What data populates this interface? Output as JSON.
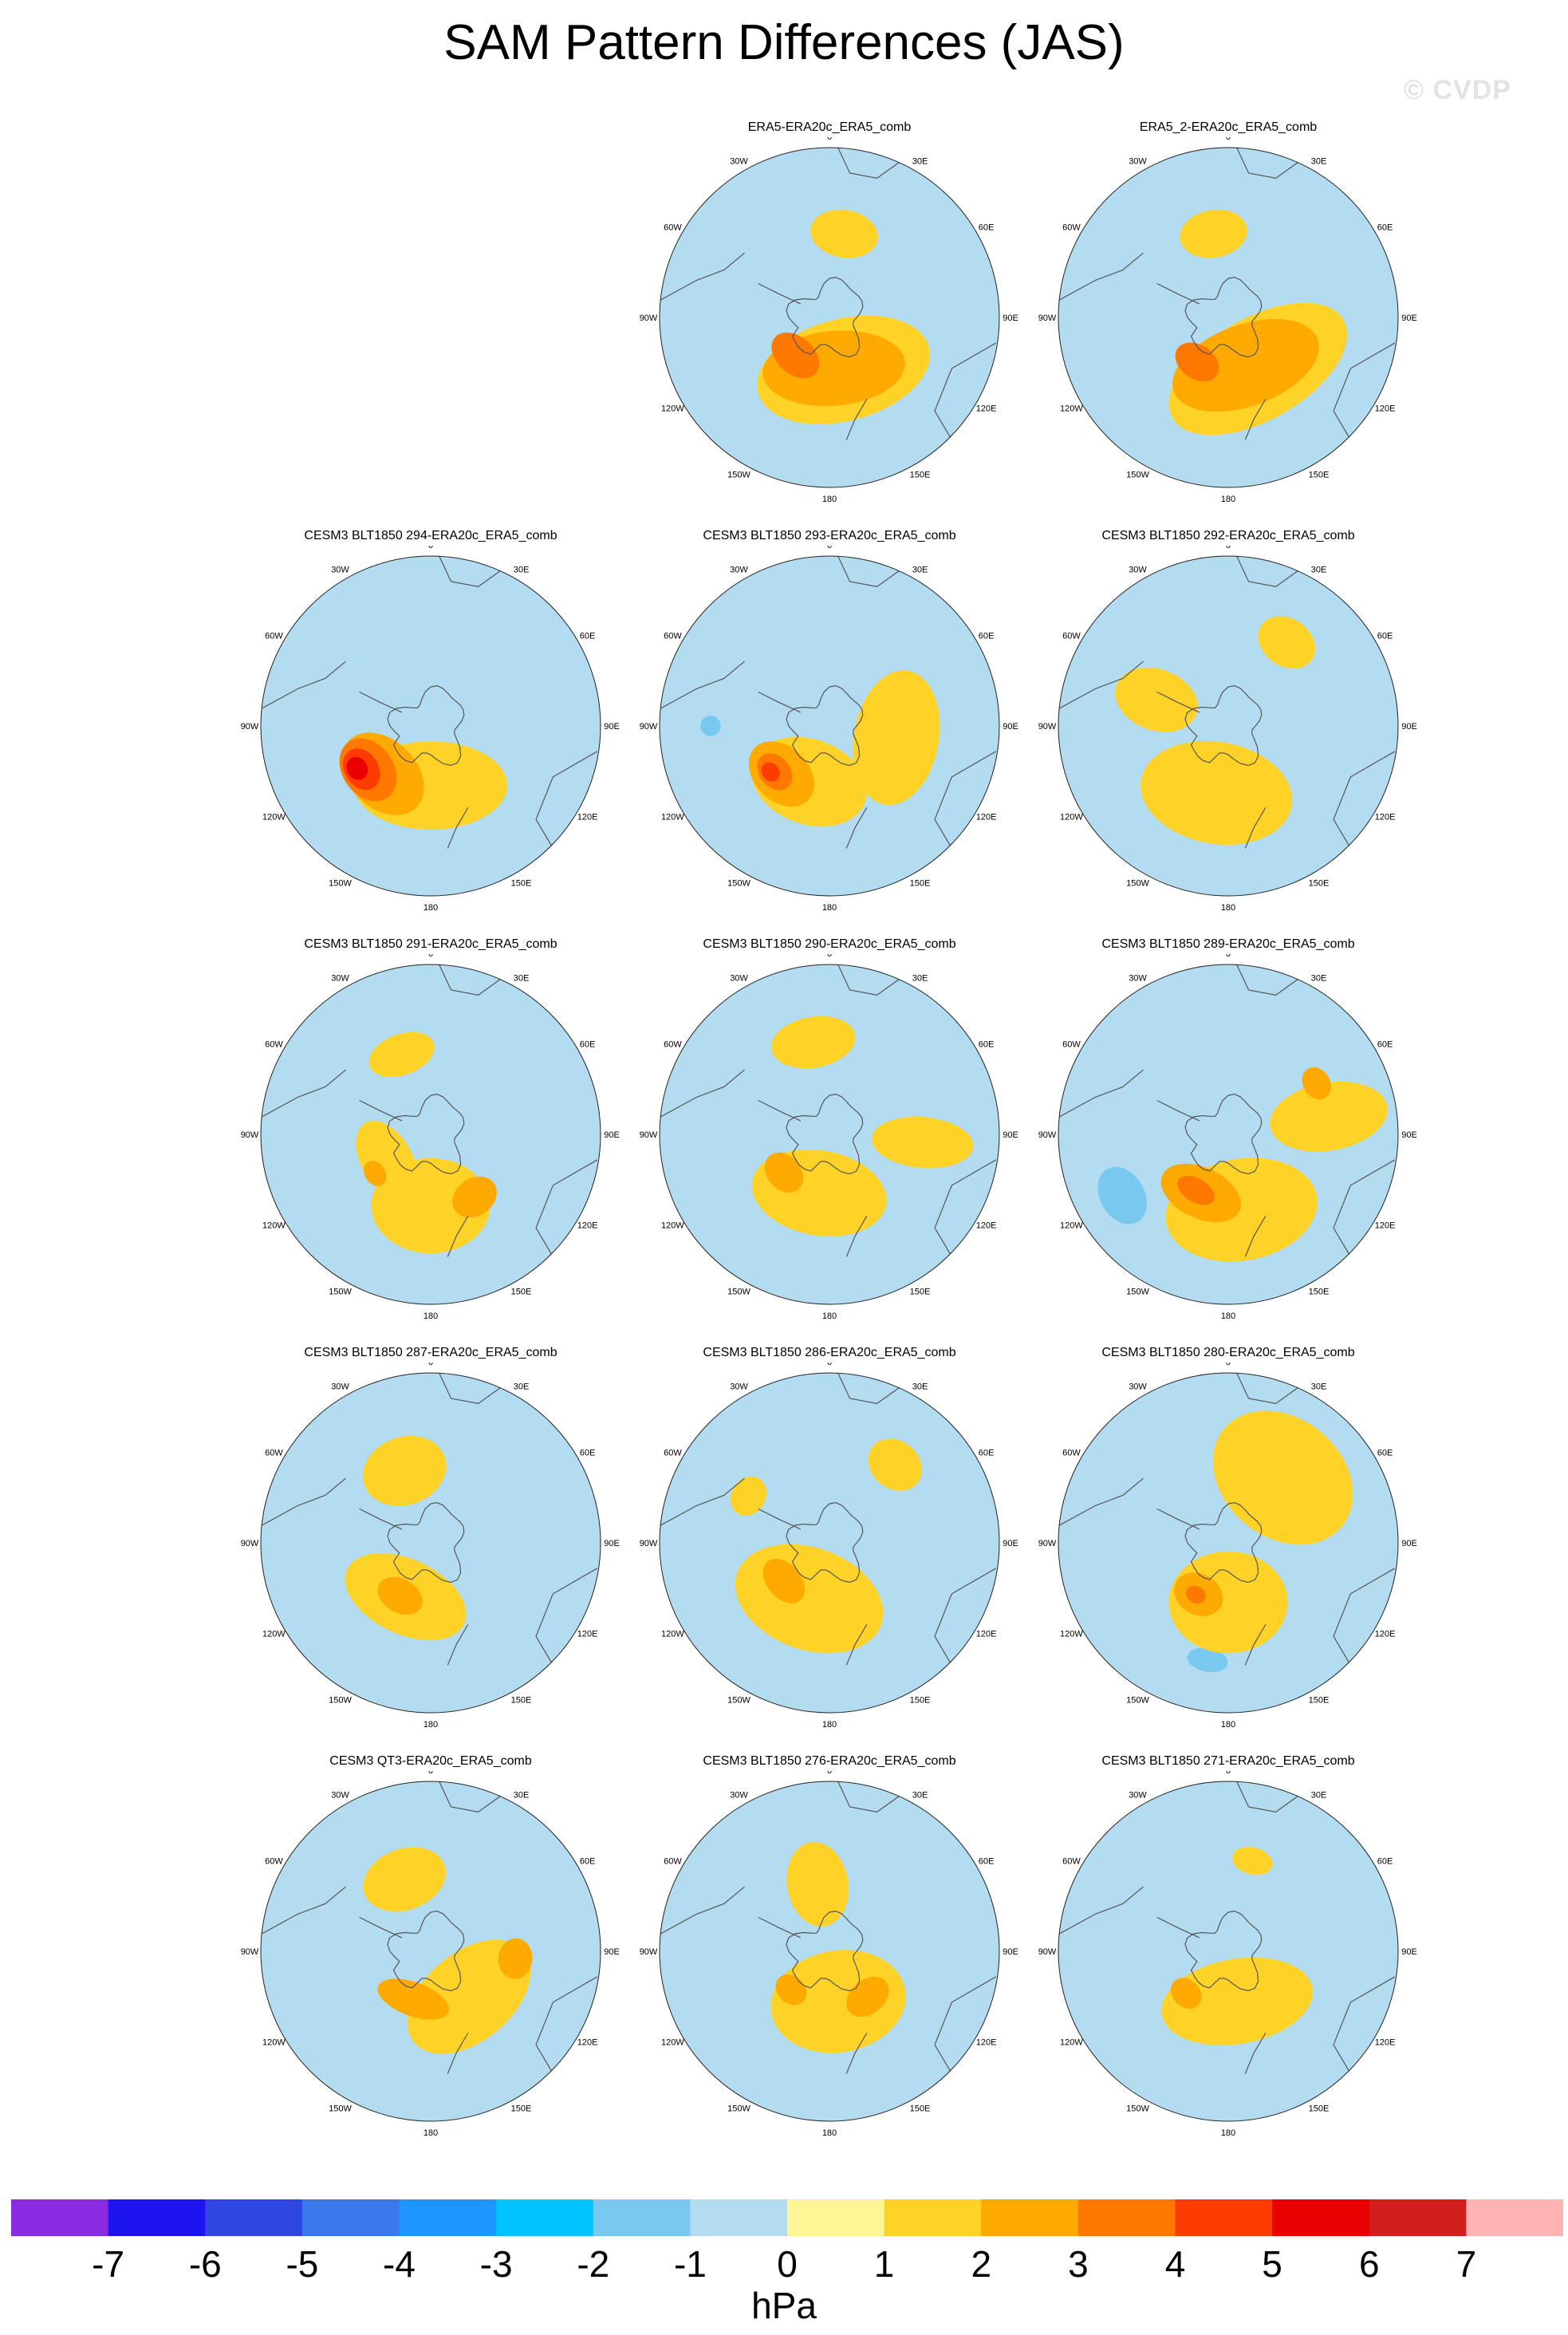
{
  "title": "SAM Pattern Differences (JAS)",
  "watermark": "© CVDP",
  "units": "hPa",
  "lon_labels": [
    "0",
    "30E",
    "60E",
    "90E",
    "120E",
    "150E",
    "180",
    "150W",
    "120W",
    "90W",
    "60W",
    "30W"
  ],
  "colorbar": {
    "colors": [
      "#8a2be2",
      "#1e14f0",
      "#2f46e0",
      "#3b78ec",
      "#1e96ff",
      "#00c3ff",
      "#78c8f0",
      "#b4dcf0",
      "#fff596",
      "#ffd228",
      "#ffaa00",
      "#ff7800",
      "#ff3c00",
      "#eb0000",
      "#d21e1e",
      "#ffb4b4"
    ],
    "labels": [
      "-7",
      "-6",
      "-5",
      "-4",
      "-3",
      "-2",
      "-1",
      "0",
      "1",
      "2",
      "3",
      "4",
      "5",
      "6",
      "7"
    ]
  },
  "chart_data": [
    {
      "type": "polar-map",
      "title": "ERA5-ERA20c_ERA5_comb",
      "features": [
        {
          "v": -1,
          "r": 0.8,
          "a": 250,
          "rx": 0.5,
          "ry": 0.38
        },
        {
          "v": -1,
          "r": 0.9,
          "a": 210,
          "rx": 0.3,
          "ry": 0.2
        },
        {
          "v": -1,
          "r": 0.85,
          "a": 345,
          "rx": 0.18,
          "ry": 0.14
        },
        {
          "v": 1,
          "r": 0.32,
          "a": 165,
          "rx": 0.52,
          "ry": 0.3
        },
        {
          "v": 1,
          "r": 0.5,
          "a": 10,
          "rx": 0.2,
          "ry": 0.14
        },
        {
          "v": 2,
          "r": 0.3,
          "a": 175,
          "rx": 0.42,
          "ry": 0.22
        },
        {
          "v": 3,
          "r": 0.3,
          "a": 222,
          "rx": 0.16,
          "ry": 0.11
        }
      ]
    },
    {
      "type": "polar-map",
      "title": "ERA5_2-ERA20c_ERA5_comb",
      "features": [
        {
          "v": -1,
          "r": 0.8,
          "a": 260,
          "rx": 0.45,
          "ry": 0.42
        },
        {
          "v": -1,
          "r": 0.85,
          "a": 340,
          "rx": 0.2,
          "ry": 0.15
        },
        {
          "v": 1,
          "r": 0.35,
          "a": 150,
          "rx": 0.58,
          "ry": 0.3
        },
        {
          "v": 1,
          "r": 0.5,
          "a": 350,
          "rx": 0.2,
          "ry": 0.14
        },
        {
          "v": 2,
          "r": 0.3,
          "a": 160,
          "rx": 0.45,
          "ry": 0.24
        },
        {
          "v": 3,
          "r": 0.32,
          "a": 215,
          "rx": 0.14,
          "ry": 0.1
        }
      ]
    },
    {
      "type": "polar-map",
      "title": "CESM3 BLT1850 294-ERA20c_ERA5_comb",
      "features": [
        {
          "v": -1,
          "r": 0.6,
          "a": 25,
          "rx": 0.28,
          "ry": 0.2
        },
        {
          "v": -1,
          "r": 0.8,
          "a": 215,
          "rx": 0.35,
          "ry": 0.22
        },
        {
          "v": 1,
          "r": 0.35,
          "a": 180,
          "rx": 0.45,
          "ry": 0.26
        },
        {
          "v": 2,
          "r": 0.4,
          "a": 225,
          "rx": 0.28,
          "ry": 0.2
        },
        {
          "v": 3,
          "r": 0.45,
          "a": 235,
          "rx": 0.2,
          "ry": 0.15
        },
        {
          "v": 4,
          "r": 0.48,
          "a": 238,
          "rx": 0.13,
          "ry": 0.1
        },
        {
          "v": 5,
          "r": 0.5,
          "a": 240,
          "rx": 0.07,
          "ry": 0.06
        }
      ]
    },
    {
      "type": "polar-map",
      "title": "CESM3 BLT1850 293-ERA20c_ERA5_comb",
      "features": [
        {
          "v": -1,
          "r": 0.65,
          "a": 250,
          "rx": 0.35,
          "ry": 0.3
        },
        {
          "v": -2,
          "r": 0.7,
          "a": 270,
          "rx": 0.06,
          "ry": 0.06
        },
        {
          "v": 1,
          "r": 0.4,
          "a": 100,
          "rx": 0.4,
          "ry": 0.25
        },
        {
          "v": 1,
          "r": 0.35,
          "a": 200,
          "rx": 0.35,
          "ry": 0.25
        },
        {
          "v": 2,
          "r": 0.4,
          "a": 225,
          "rx": 0.22,
          "ry": 0.16
        },
        {
          "v": 3,
          "r": 0.42,
          "a": 230,
          "rx": 0.12,
          "ry": 0.09
        },
        {
          "v": 4,
          "r": 0.44,
          "a": 232,
          "rx": 0.06,
          "ry": 0.05
        }
      ]
    },
    {
      "type": "polar-map",
      "title": "CESM3 BLT1850 292-ERA20c_ERA5_comb",
      "features": [
        {
          "v": -1,
          "r": 0.75,
          "a": 245,
          "rx": 0.45,
          "ry": 0.22
        },
        {
          "v": 1,
          "r": 0.4,
          "a": 190,
          "rx": 0.45,
          "ry": 0.3
        },
        {
          "v": 1,
          "r": 0.6,
          "a": 35,
          "rx": 0.18,
          "ry": 0.14
        },
        {
          "v": 1,
          "r": 0.45,
          "a": 290,
          "rx": 0.18,
          "ry": 0.25
        }
      ]
    },
    {
      "type": "polar-map",
      "title": "CESM3 BLT1850 291-ERA20c_ERA5_comb",
      "features": [
        {
          "v": -1,
          "r": 0.5,
          "a": 10,
          "rx": 0.15,
          "ry": 0.12
        },
        {
          "v": 1,
          "r": 0.42,
          "a": 180,
          "rx": 0.35,
          "ry": 0.28
        },
        {
          "v": 1,
          "r": 0.5,
          "a": 340,
          "rx": 0.2,
          "ry": 0.12
        },
        {
          "v": 1,
          "r": 0.3,
          "a": 240,
          "rx": 0.25,
          "ry": 0.15
        },
        {
          "v": 2,
          "r": 0.45,
          "a": 145,
          "rx": 0.14,
          "ry": 0.11
        },
        {
          "v": 2,
          "r": 0.4,
          "a": 235,
          "rx": 0.08,
          "ry": 0.06
        }
      ]
    },
    {
      "type": "polar-map",
      "title": "CESM3 BLT1850 290-ERA20c_ERA5_comb",
      "features": [
        {
          "v": -1,
          "r": 0.7,
          "a": 250,
          "rx": 0.3,
          "ry": 0.2
        },
        {
          "v": -1,
          "r": 0.72,
          "a": 310,
          "rx": 0.14,
          "ry": 0.1
        },
        {
          "v": 1,
          "r": 0.55,
          "a": 350,
          "rx": 0.25,
          "ry": 0.15
        },
        {
          "v": 1,
          "r": 0.35,
          "a": 190,
          "rx": 0.4,
          "ry": 0.25
        },
        {
          "v": 1,
          "r": 0.55,
          "a": 95,
          "rx": 0.15,
          "ry": 0.3
        },
        {
          "v": 2,
          "r": 0.35,
          "a": 230,
          "rx": 0.13,
          "ry": 0.1
        }
      ]
    },
    {
      "type": "polar-map",
      "title": "CESM3 BLT1850 289-ERA20c_ERA5_comb",
      "features": [
        {
          "v": -1,
          "r": 0.7,
          "a": 245,
          "rx": 0.45,
          "ry": 0.4
        },
        {
          "v": -2,
          "r": 0.72,
          "a": 240,
          "rx": 0.18,
          "ry": 0.13
        },
        {
          "v": 1,
          "r": 0.45,
          "a": 170,
          "rx": 0.45,
          "ry": 0.3
        },
        {
          "v": 1,
          "r": 0.6,
          "a": 80,
          "rx": 0.2,
          "ry": 0.35
        },
        {
          "v": 2,
          "r": 0.38,
          "a": 205,
          "rx": 0.25,
          "ry": 0.15
        },
        {
          "v": 2,
          "r": 0.6,
          "a": 60,
          "rx": 0.1,
          "ry": 0.08
        },
        {
          "v": 3,
          "r": 0.38,
          "a": 210,
          "rx": 0.12,
          "ry": 0.07
        }
      ]
    },
    {
      "type": "polar-map",
      "title": "CESM3 BLT1850 287-ERA20c_ERA5_comb",
      "features": [
        {
          "v": -1,
          "r": 0.75,
          "a": 195,
          "rx": 0.22,
          "ry": 0.15
        },
        {
          "v": -1,
          "r": 0.8,
          "a": 20,
          "rx": 0.15,
          "ry": 0.1
        },
        {
          "v": 1,
          "r": 0.45,
          "a": 340,
          "rx": 0.25,
          "ry": 0.2
        },
        {
          "v": 1,
          "r": 0.35,
          "a": 205,
          "rx": 0.38,
          "ry": 0.22
        },
        {
          "v": 2,
          "r": 0.36,
          "a": 210,
          "rx": 0.14,
          "ry": 0.1
        }
      ]
    },
    {
      "type": "polar-map",
      "title": "CESM3 BLT1850 286-ERA20c_ERA5_comb",
      "features": [
        {
          "v": -1,
          "r": 0.75,
          "a": 250,
          "rx": 0.4,
          "ry": 0.4
        },
        {
          "v": 1,
          "r": 0.35,
          "a": 200,
          "rx": 0.45,
          "ry": 0.3
        },
        {
          "v": 1,
          "r": 0.6,
          "a": 40,
          "rx": 0.17,
          "ry": 0.14
        },
        {
          "v": 1,
          "r": 0.55,
          "a": 300,
          "rx": 0.12,
          "ry": 0.1
        },
        {
          "v": 2,
          "r": 0.35,
          "a": 230,
          "rx": 0.15,
          "ry": 0.1
        }
      ]
    },
    {
      "type": "polar-map",
      "title": "CESM3 BLT1850 280-ERA20c_ERA5_comb",
      "features": [
        {
          "v": -1,
          "r": 0.6,
          "a": 235,
          "rx": 0.5,
          "ry": 0.35
        },
        {
          "v": -2,
          "r": 0.7,
          "a": 190,
          "rx": 0.12,
          "ry": 0.07
        },
        {
          "v": 1,
          "r": 0.5,
          "a": 40,
          "rx": 0.45,
          "ry": 0.35
        },
        {
          "v": 1,
          "r": 0.35,
          "a": 180,
          "rx": 0.35,
          "ry": 0.3
        },
        {
          "v": 2,
          "r": 0.35,
          "a": 210,
          "rx": 0.15,
          "ry": 0.12
        },
        {
          "v": 3,
          "r": 0.36,
          "a": 212,
          "rx": 0.06,
          "ry": 0.05
        }
      ]
    },
    {
      "type": "polar-map",
      "title": "CESM3 QT3-ERA20c_ERA5_comb",
      "features": [
        {
          "v": -1,
          "r": 0.65,
          "a": 195,
          "rx": 0.25,
          "ry": 0.12
        },
        {
          "v": -1,
          "r": 0.72,
          "a": 285,
          "rx": 0.15,
          "ry": 0.12
        },
        {
          "v": -1,
          "r": 0.8,
          "a": 30,
          "rx": 0.12,
          "ry": 0.1
        },
        {
          "v": 1,
          "r": 0.45,
          "a": 340,
          "rx": 0.25,
          "ry": 0.18
        },
        {
          "v": 1,
          "r": 0.35,
          "a": 140,
          "rx": 0.42,
          "ry": 0.26
        },
        {
          "v": 2,
          "r": 0.3,
          "a": 200,
          "rx": 0.22,
          "ry": 0.1
        },
        {
          "v": 2,
          "r": 0.5,
          "a": 95,
          "rx": 0.12,
          "ry": 0.1
        }
      ]
    },
    {
      "type": "polar-map",
      "title": "CESM3 BLT1850 276-ERA20c_ERA5_comb",
      "features": [
        {
          "v": -1,
          "r": 0.9,
          "a": 35,
          "rx": 0.1,
          "ry": 0.08
        },
        {
          "v": 1,
          "r": 0.4,
          "a": 350,
          "rx": 0.18,
          "ry": 0.25
        },
        {
          "v": 1,
          "r": 0.3,
          "a": 170,
          "rx": 0.4,
          "ry": 0.3
        },
        {
          "v": 2,
          "r": 0.35,
          "a": 140,
          "rx": 0.14,
          "ry": 0.1
        },
        {
          "v": 2,
          "r": 0.32,
          "a": 225,
          "rx": 0.1,
          "ry": 0.08
        }
      ]
    },
    {
      "type": "polar-map",
      "title": "CESM3 BLT1850 271-ERA20c_ERA5_comb",
      "features": [
        {
          "v": -1,
          "r": 0.55,
          "a": 275,
          "rx": 0.1,
          "ry": 0.06
        },
        {
          "v": -1,
          "r": 0.65,
          "a": 185,
          "rx": 0.08,
          "ry": 0.05
        },
        {
          "v": 1,
          "r": 0.3,
          "a": 170,
          "rx": 0.45,
          "ry": 0.25
        },
        {
          "v": 1,
          "r": 0.55,
          "a": 15,
          "rx": 0.12,
          "ry": 0.08
        },
        {
          "v": 2,
          "r": 0.35,
          "a": 225,
          "rx": 0.1,
          "ry": 0.08
        }
      ]
    }
  ]
}
